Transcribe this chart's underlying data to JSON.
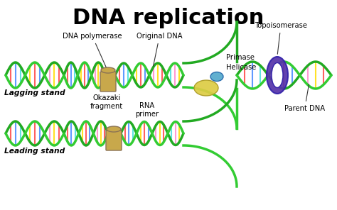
{
  "title": "DNA replication",
  "title_fontsize": 22,
  "title_fontweight": "bold",
  "bg_color": "#ffffff",
  "labels": {
    "dna_polymerase": "DNA polymerase",
    "original_dna": "Original DNA",
    "okazaki": "Okazaki\nfragment",
    "rna_primer": "RNA\nprimer",
    "primase": "Primase",
    "helicase": "Helicase",
    "topoisomerase": "Topoisomerase",
    "parent_dna": "Parent DNA",
    "lagging": "Lagging stand",
    "leading": "Leading stand"
  },
  "colors": {
    "dna_green": "#22aa22",
    "dna_green2": "#33cc33",
    "base_yellow": "#ffdd00",
    "base_red": "#ff4444",
    "base_blue": "#4488ff",
    "base_cyan": "#44dddd",
    "base_pink": "#ff88cc",
    "polymerase": "#c8a84b",
    "topoisomerase": "#5533aa",
    "helicase": "#ddcc44",
    "primase": "#55aacc",
    "line_color": "#333333"
  }
}
